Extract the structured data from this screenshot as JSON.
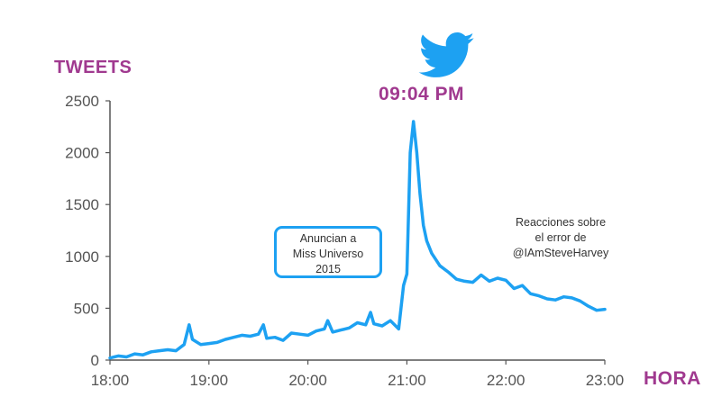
{
  "chart_data": {
    "type": "line",
    "title": "",
    "ylabel": "TWEETS",
    "xlabel": "HORA",
    "ylim": [
      0,
      2500
    ],
    "xlim": [
      "18:00",
      "23:00"
    ],
    "y_ticks": [
      "0",
      "500",
      "1000",
      "1500",
      "2000",
      "2500"
    ],
    "x_ticks": [
      "18:00",
      "19:00",
      "20:00",
      "21:00",
      "22:00",
      "23:00"
    ],
    "grid": false,
    "line_color": "#1da1f2",
    "label_color": "#a0398f",
    "peak_label": "09:04 PM",
    "annotations": [
      {
        "text_lines": [
          "Anuncian a",
          "Miss Universo",
          "2015"
        ],
        "boxed": true
      },
      {
        "text_lines": [
          "Reacciones sobre",
          "el error de",
          "@IAmSteveHarvey"
        ],
        "boxed": false
      }
    ],
    "icon": "twitter-bird-icon",
    "series": [
      {
        "x": [
          "18:00",
          "18:05",
          "18:10",
          "18:15",
          "18:20",
          "18:25",
          "18:30",
          "18:35",
          "18:40",
          "18:45",
          "18:48",
          "18:50",
          "18:55",
          "19:00",
          "19:05",
          "19:10",
          "19:15",
          "19:20",
          "19:25",
          "19:30",
          "19:33",
          "19:35",
          "19:40",
          "19:45",
          "19:50",
          "19:55",
          "20:00",
          "20:05",
          "20:10",
          "20:12",
          "20:15",
          "20:20",
          "20:25",
          "20:30",
          "20:35",
          "20:38",
          "20:40",
          "20:45",
          "20:50",
          "20:55",
          "20:58",
          "21:00",
          "21:02",
          "21:04",
          "21:06",
          "21:08",
          "21:10",
          "21:12",
          "21:15",
          "21:20",
          "21:25",
          "21:30",
          "21:35",
          "21:40",
          "21:45",
          "21:50",
          "21:55",
          "22:00",
          "22:05",
          "22:10",
          "22:15",
          "22:20",
          "22:25",
          "22:30",
          "22:35",
          "22:40",
          "22:45",
          "22:50",
          "22:55",
          "23:00"
        ],
        "values": [
          20,
          40,
          30,
          60,
          50,
          80,
          90,
          100,
          90,
          150,
          340,
          200,
          150,
          160,
          170,
          200,
          220,
          240,
          230,
          250,
          340,
          210,
          220,
          190,
          260,
          250,
          240,
          280,
          300,
          380,
          270,
          290,
          310,
          360,
          340,
          460,
          350,
          330,
          380,
          300,
          720,
          830,
          2000,
          2300,
          2000,
          1600,
          1300,
          1150,
          1030,
          910,
          850,
          780,
          760,
          750,
          820,
          760,
          790,
          770,
          690,
          720,
          640,
          620,
          590,
          580,
          610,
          600,
          570,
          520,
          480,
          490
        ]
      }
    ]
  }
}
